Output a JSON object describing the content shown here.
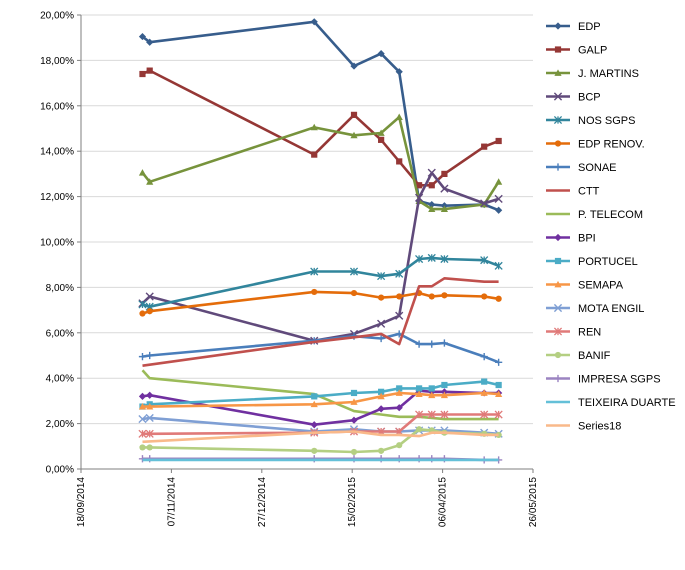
{
  "chart_data": {
    "type": "line",
    "x_axis": {
      "kind": "date",
      "ticks": [
        "18/09/2014",
        "07/11/2014",
        "27/12/2014",
        "15/02/2015",
        "06/04/2015",
        "26/05/2015"
      ],
      "range": [
        "2014-09-18",
        "2015-05-26"
      ]
    },
    "y_axis": {
      "range": [
        0,
        20
      ],
      "ticks": [
        "0,00%",
        "2,00%",
        "4,00%",
        "6,00%",
        "8,00%",
        "10,00%",
        "12,00%",
        "14,00%",
        "16,00%",
        "18,00%",
        "20,00%"
      ]
    },
    "grid": "horizontal",
    "legend_position": "right",
    "series": [
      {
        "name": "EDP",
        "color": "#375d8c",
        "marker": "diamond",
        "points": [
          [
            "2014-10-22",
            19.05
          ],
          [
            "2014-10-26",
            18.8
          ],
          [
            "2015-01-25",
            19.7
          ],
          [
            "2015-02-16",
            17.75
          ],
          [
            "2015-03-03",
            18.3
          ],
          [
            "2015-03-13",
            17.5
          ],
          [
            "2015-03-24",
            11.8
          ],
          [
            "2015-03-31",
            11.65
          ],
          [
            "2015-04-07",
            11.6
          ],
          [
            "2015-04-29",
            11.65
          ],
          [
            "2015-05-07",
            11.4
          ]
        ]
      },
      {
        "name": "GALP",
        "color": "#953735",
        "marker": "square",
        "points": [
          [
            "2014-10-22",
            17.4
          ],
          [
            "2014-10-26",
            17.55
          ],
          [
            "2015-01-25",
            13.85
          ],
          [
            "2015-02-16",
            15.6
          ],
          [
            "2015-03-03",
            14.5
          ],
          [
            "2015-03-13",
            13.55
          ],
          [
            "2015-03-24",
            12.5
          ],
          [
            "2015-03-31",
            12.5
          ],
          [
            "2015-04-07",
            13.0
          ],
          [
            "2015-04-29",
            14.2
          ],
          [
            "2015-05-07",
            14.45
          ]
        ]
      },
      {
        "name": "J. MARTINS",
        "color": "#77933c",
        "marker": "triangle",
        "points": [
          [
            "2014-10-22",
            13.05
          ],
          [
            "2014-10-26",
            12.65
          ],
          [
            "2015-01-25",
            15.05
          ],
          [
            "2015-02-16",
            14.7
          ],
          [
            "2015-03-03",
            14.8
          ],
          [
            "2015-03-13",
            15.5
          ],
          [
            "2015-03-24",
            11.8
          ],
          [
            "2015-03-31",
            11.45
          ],
          [
            "2015-04-07",
            11.45
          ],
          [
            "2015-04-29",
            11.65
          ],
          [
            "2015-05-07",
            12.65
          ]
        ]
      },
      {
        "name": "BCP",
        "color": "#604a7b",
        "marker": "x",
        "points": [
          [
            "2014-10-22",
            7.3
          ],
          [
            "2014-10-26",
            7.6
          ],
          [
            "2015-01-25",
            5.65
          ],
          [
            "2015-02-16",
            5.95
          ],
          [
            "2015-03-03",
            6.4
          ],
          [
            "2015-03-13",
            6.75
          ],
          [
            "2015-03-24",
            11.95
          ],
          [
            "2015-03-31",
            13.05
          ],
          [
            "2015-04-07",
            12.35
          ],
          [
            "2015-04-29",
            11.7
          ],
          [
            "2015-05-07",
            11.9
          ]
        ]
      },
      {
        "name": "NOS SGPS",
        "color": "#31859c",
        "marker": "star",
        "points": [
          [
            "2014-10-22",
            7.25
          ],
          [
            "2014-10-26",
            7.15
          ],
          [
            "2015-01-25",
            8.7
          ],
          [
            "2015-02-16",
            8.7
          ],
          [
            "2015-03-03",
            8.5
          ],
          [
            "2015-03-13",
            8.6
          ],
          [
            "2015-03-24",
            9.25
          ],
          [
            "2015-03-31",
            9.3
          ],
          [
            "2015-04-07",
            9.25
          ],
          [
            "2015-04-29",
            9.2
          ],
          [
            "2015-05-07",
            8.95
          ]
        ]
      },
      {
        "name": "EDP RENOV.",
        "color": "#e46c0a",
        "marker": "circle",
        "points": [
          [
            "2014-10-22",
            6.85
          ],
          [
            "2014-10-26",
            6.95
          ],
          [
            "2015-01-25",
            7.8
          ],
          [
            "2015-02-16",
            7.75
          ],
          [
            "2015-03-03",
            7.55
          ],
          [
            "2015-03-13",
            7.6
          ],
          [
            "2015-03-24",
            7.75
          ],
          [
            "2015-03-31",
            7.6
          ],
          [
            "2015-04-07",
            7.65
          ],
          [
            "2015-04-29",
            7.6
          ],
          [
            "2015-05-07",
            7.5
          ]
        ]
      },
      {
        "name": "SONAE",
        "color": "#4a7ebb",
        "marker": "plus",
        "points": [
          [
            "2014-10-22",
            4.95
          ],
          [
            "2014-10-26",
            5.0
          ],
          [
            "2015-01-25",
            5.65
          ],
          [
            "2015-02-16",
            5.85
          ],
          [
            "2015-03-03",
            5.75
          ],
          [
            "2015-03-13",
            5.95
          ],
          [
            "2015-03-24",
            5.5
          ],
          [
            "2015-03-31",
            5.5
          ],
          [
            "2015-04-07",
            5.55
          ],
          [
            "2015-04-29",
            4.95
          ],
          [
            "2015-05-07",
            4.7
          ]
        ]
      },
      {
        "name": "CTT",
        "color": "#c0504d",
        "marker": "none",
        "points": [
          [
            "2014-10-22",
            4.55
          ],
          [
            "2015-01-25",
            5.6
          ],
          [
            "2015-02-16",
            5.8
          ],
          [
            "2015-03-03",
            5.95
          ],
          [
            "2015-03-13",
            5.5
          ],
          [
            "2015-03-24",
            8.05
          ],
          [
            "2015-03-31",
            8.05
          ],
          [
            "2015-04-07",
            8.4
          ],
          [
            "2015-04-29",
            8.25
          ],
          [
            "2015-05-07",
            8.25
          ]
        ]
      },
      {
        "name": "P. TELECOM",
        "color": "#9bbb59",
        "marker": "none",
        "points": [
          [
            "2014-10-22",
            4.35
          ],
          [
            "2014-10-26",
            4.0
          ],
          [
            "2015-01-25",
            3.3
          ],
          [
            "2015-02-16",
            2.55
          ],
          [
            "2015-03-03",
            2.4
          ],
          [
            "2015-03-13",
            2.3
          ],
          [
            "2015-03-24",
            2.3
          ],
          [
            "2015-03-31",
            2.25
          ],
          [
            "2015-04-07",
            2.2
          ],
          [
            "2015-04-29",
            2.2
          ],
          [
            "2015-05-07",
            2.2
          ]
        ]
      },
      {
        "name": "BPI",
        "color": "#7030a0",
        "marker": "diamond",
        "points": [
          [
            "2014-10-22",
            3.2
          ],
          [
            "2014-10-26",
            3.25
          ],
          [
            "2015-01-25",
            1.95
          ],
          [
            "2015-02-16",
            2.15
          ],
          [
            "2015-03-03",
            2.65
          ],
          [
            "2015-03-13",
            2.7
          ],
          [
            "2015-03-24",
            3.45
          ],
          [
            "2015-03-31",
            3.4
          ],
          [
            "2015-04-07",
            3.4
          ],
          [
            "2015-04-29",
            3.35
          ],
          [
            "2015-05-07",
            3.35
          ]
        ]
      },
      {
        "name": "PORTUCEL",
        "color": "#4bacc6",
        "marker": "square",
        "points": [
          [
            "2014-10-22",
            2.75
          ],
          [
            "2014-10-26",
            2.85
          ],
          [
            "2015-01-25",
            3.2
          ],
          [
            "2015-02-16",
            3.35
          ],
          [
            "2015-03-03",
            3.4
          ],
          [
            "2015-03-13",
            3.55
          ],
          [
            "2015-03-24",
            3.55
          ],
          [
            "2015-03-31",
            3.55
          ],
          [
            "2015-04-07",
            3.7
          ],
          [
            "2015-04-29",
            3.85
          ],
          [
            "2015-05-07",
            3.7
          ]
        ]
      },
      {
        "name": "SEMAPA",
        "color": "#f79646",
        "marker": "triangle",
        "points": [
          [
            "2014-10-22",
            2.75
          ],
          [
            "2014-10-26",
            2.75
          ],
          [
            "2015-01-25",
            2.85
          ],
          [
            "2015-02-16",
            2.95
          ],
          [
            "2015-03-03",
            3.2
          ],
          [
            "2015-03-13",
            3.35
          ],
          [
            "2015-03-24",
            3.3
          ],
          [
            "2015-03-31",
            3.25
          ],
          [
            "2015-04-07",
            3.25
          ],
          [
            "2015-04-29",
            3.35
          ],
          [
            "2015-05-07",
            3.3
          ]
        ]
      },
      {
        "name": "MOTA ENGIL",
        "color": "#7f9fd4",
        "marker": "x",
        "points": [
          [
            "2014-10-22",
            2.2
          ],
          [
            "2014-10-26",
            2.25
          ],
          [
            "2015-01-25",
            1.65
          ],
          [
            "2015-02-16",
            1.75
          ],
          [
            "2015-03-03",
            1.65
          ],
          [
            "2015-03-13",
            1.65
          ],
          [
            "2015-03-24",
            1.7
          ],
          [
            "2015-03-31",
            1.7
          ],
          [
            "2015-04-07",
            1.7
          ],
          [
            "2015-04-29",
            1.6
          ],
          [
            "2015-05-07",
            1.55
          ]
        ]
      },
      {
        "name": "REN",
        "color": "#e07a79",
        "marker": "star",
        "points": [
          [
            "2014-10-22",
            1.55
          ],
          [
            "2014-10-26",
            1.55
          ],
          [
            "2015-01-25",
            1.6
          ],
          [
            "2015-02-16",
            1.65
          ],
          [
            "2015-03-03",
            1.65
          ],
          [
            "2015-03-13",
            1.65
          ],
          [
            "2015-03-24",
            2.4
          ],
          [
            "2015-03-31",
            2.4
          ],
          [
            "2015-04-07",
            2.4
          ],
          [
            "2015-04-29",
            2.4
          ],
          [
            "2015-05-07",
            2.4
          ]
        ]
      },
      {
        "name": "BANIF",
        "color": "#b4cf82",
        "marker": "circle",
        "points": [
          [
            "2014-10-22",
            0.95
          ],
          [
            "2014-10-26",
            0.95
          ],
          [
            "2015-01-25",
            0.8
          ],
          [
            "2015-02-16",
            0.75
          ],
          [
            "2015-03-03",
            0.8
          ],
          [
            "2015-03-13",
            1.05
          ],
          [
            "2015-03-24",
            1.75
          ],
          [
            "2015-03-31",
            1.7
          ],
          [
            "2015-04-07",
            1.6
          ],
          [
            "2015-04-29",
            1.55
          ],
          [
            "2015-05-07",
            1.5
          ]
        ]
      },
      {
        "name": "IMPRESA SGPS",
        "color": "#9b84c1",
        "marker": "plus",
        "points": [
          [
            "2014-10-22",
            0.45
          ],
          [
            "2014-10-26",
            0.45
          ],
          [
            "2015-01-25",
            0.45
          ],
          [
            "2015-02-16",
            0.45
          ],
          [
            "2015-03-03",
            0.45
          ],
          [
            "2015-03-13",
            0.45
          ],
          [
            "2015-03-24",
            0.45
          ],
          [
            "2015-03-31",
            0.45
          ],
          [
            "2015-04-07",
            0.45
          ],
          [
            "2015-04-29",
            0.4
          ],
          [
            "2015-05-07",
            0.4
          ]
        ]
      },
      {
        "name": "TEIXEIRA DUARTE",
        "color": "#64c0d8",
        "marker": "none",
        "points": [
          [
            "2014-10-22",
            0.4
          ],
          [
            "2014-10-26",
            0.4
          ],
          [
            "2015-01-25",
            0.4
          ],
          [
            "2015-02-16",
            0.4
          ],
          [
            "2015-03-03",
            0.4
          ],
          [
            "2015-03-13",
            0.4
          ],
          [
            "2015-03-24",
            0.4
          ],
          [
            "2015-03-31",
            0.4
          ],
          [
            "2015-04-07",
            0.4
          ],
          [
            "2015-04-29",
            0.4
          ],
          [
            "2015-05-07",
            0.4
          ]
        ]
      },
      {
        "name": "Series18",
        "color": "#f9b98a",
        "marker": "none",
        "points": [
          [
            "2014-10-22",
            1.2
          ],
          [
            "2015-01-25",
            1.6
          ],
          [
            "2015-02-16",
            1.65
          ],
          [
            "2015-03-03",
            1.5
          ],
          [
            "2015-03-13",
            1.5
          ],
          [
            "2015-03-24",
            1.45
          ],
          [
            "2015-03-31",
            1.6
          ],
          [
            "2015-04-07",
            1.6
          ],
          [
            "2015-04-29",
            1.5
          ],
          [
            "2015-05-07",
            1.5
          ]
        ]
      }
    ]
  }
}
